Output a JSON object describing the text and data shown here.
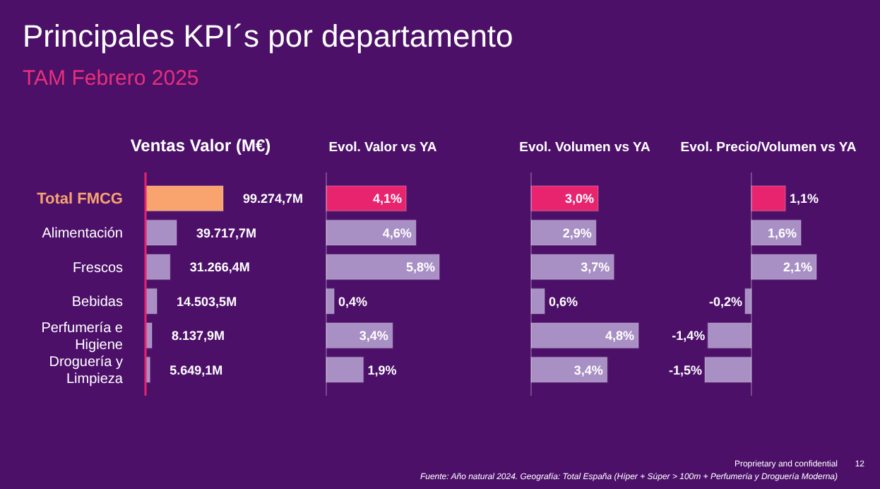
{
  "chart_data": [
    {
      "type": "bar",
      "orientation": "horizontal",
      "title": "Ventas Valor (M€)",
      "tick_labels": "y",
      "categories": [
        "Total FMCG",
        "Alimentación",
        "Frescos",
        "Bebidas",
        "Perfumería e Higiene",
        "Droguería y Limpieza"
      ],
      "values": [
        99274.7,
        39717.7,
        31266.4,
        14503.5,
        8137.9,
        5649.1
      ],
      "value_labels": [
        "99.274,7M",
        "39.717,7M",
        "31.266,4M",
        "14.503,5M",
        "8.137,9M",
        "5.649,1M"
      ],
      "colors": [
        "#f9a46e",
        "#a88fc4",
        "#a88fc4",
        "#a88fc4",
        "#a88fc4",
        "#a88fc4"
      ],
      "annotations": [
        "Principales KPI´s por departamento",
        "TAM Febrero 2025"
      ]
    },
    {
      "type": "bar",
      "orientation": "horizontal",
      "title": "Evol. Valor vs YA",
      "categories": [
        null,
        null,
        null,
        null,
        null,
        null
      ],
      "values": [
        4.1,
        4.6,
        5.8,
        0.4,
        3.4,
        1.9
      ],
      "value_labels": [
        "4,1%",
        "4,6%",
        "5,8%",
        "0,4%",
        "3,4%",
        "1,9%"
      ],
      "colors": [
        "#e8246e",
        "#a88fc4",
        "#a88fc4",
        "#a88fc4",
        "#a88fc4",
        "#a88fc4"
      ]
    },
    {
      "type": "bar",
      "orientation": "horizontal",
      "title": "Evol. Volumen vs YA",
      "categories": [
        null,
        null,
        null,
        null,
        null,
        null
      ],
      "values": [
        3.0,
        2.9,
        3.7,
        0.6,
        4.8,
        3.4
      ],
      "value_labels": [
        "3,0%",
        "2,9%",
        "3,7%",
        "0,6%",
        "4,8%",
        "3,4%"
      ],
      "colors": [
        "#e8246e",
        "#a88fc4",
        "#a88fc4",
        "#a88fc4",
        "#a88fc4",
        "#a88fc4"
      ]
    },
    {
      "type": "bar",
      "orientation": "horizontal",
      "title": "Evol. Precio/Volumen vs YA",
      "categories": [
        null,
        null,
        null,
        null,
        null,
        null
      ],
      "values": [
        1.1,
        1.6,
        2.1,
        -0.2,
        -1.4,
        -1.5
      ],
      "value_labels": [
        "1,1%",
        "1,6%",
        "2,1%",
        "-0,2%",
        "-1,4%",
        "-1,5%"
      ],
      "colors": [
        "#e8246e",
        "#a88fc4",
        "#a88fc4",
        "#a88fc4",
        "#a88fc4",
        "#a88fc4"
      ],
      "annotations": [
        "Proprietary and confidential",
        "12",
        "Fuente: Año natural 2024. Geografía: Total España (Híper + Súper > 100m + Perfumería y Droguería Moderna)"
      ]
    }
  ]
}
